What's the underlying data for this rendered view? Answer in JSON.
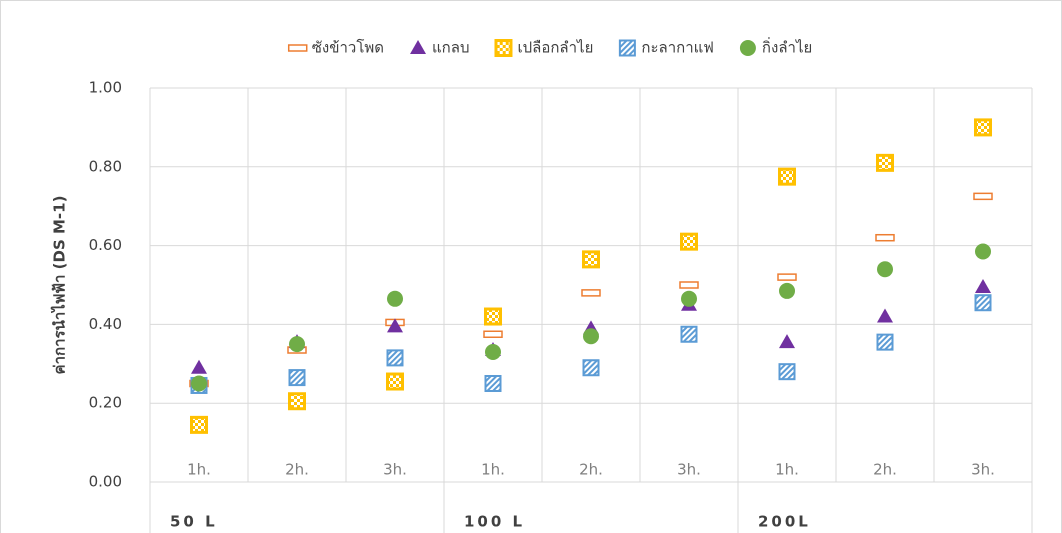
{
  "chart_data": {
    "type": "scatter",
    "y_label": "ค่าการนำไฟฟ้า (DS M-1)",
    "categories": [
      "1h.",
      "2h.",
      "3h.",
      "1h.",
      "2h.",
      "3h.",
      "1h.",
      "2h.",
      "3h."
    ],
    "groups": [
      "50 L",
      "100 L",
      "200L"
    ],
    "ylim": [
      0,
      1
    ],
    "yticks": [
      {
        "value": 0,
        "label": "0.00"
      },
      {
        "value": 0.2,
        "label": "0.20"
      },
      {
        "value": 0.4,
        "label": "0.40"
      },
      {
        "value": 0.6,
        "label": "0.60"
      },
      {
        "value": 0.8,
        "label": "0.80"
      },
      {
        "value": 1,
        "label": "1.00"
      }
    ],
    "grid": true,
    "legend": "top",
    "series": [
      {
        "name": "ซังข้าวโพด",
        "color": "#ED7D31",
        "marker": "dash",
        "values": [
          0.25,
          0.335,
          0.405,
          0.375,
          0.48,
          0.5,
          0.52,
          0.62,
          0.725
        ]
      },
      {
        "name": "แกลบ",
        "color": "#7030A0",
        "marker": "triangle",
        "values": [
          0.29,
          0.355,
          0.395,
          0.335,
          0.39,
          0.45,
          0.355,
          0.42,
          0.495
        ]
      },
      {
        "name": "เปลือกลำไย",
        "color": "#FFC000",
        "marker": "checker",
        "values": [
          0.145,
          0.205,
          0.255,
          0.42,
          0.565,
          0.61,
          0.775,
          0.81,
          0.9
        ]
      },
      {
        "name": "กะลากาแฟ",
        "color": "#5B9BD5",
        "marker": "hatch",
        "values": [
          0.245,
          0.265,
          0.315,
          0.25,
          0.29,
          0.375,
          0.28,
          0.355,
          0.455
        ]
      },
      {
        "name": "กิ่งลำไย",
        "color": "#70AD47",
        "marker": "circle",
        "values": [
          0.25,
          0.35,
          0.465,
          0.33,
          0.37,
          0.465,
          0.485,
          0.54,
          0.585
        ]
      }
    ]
  }
}
